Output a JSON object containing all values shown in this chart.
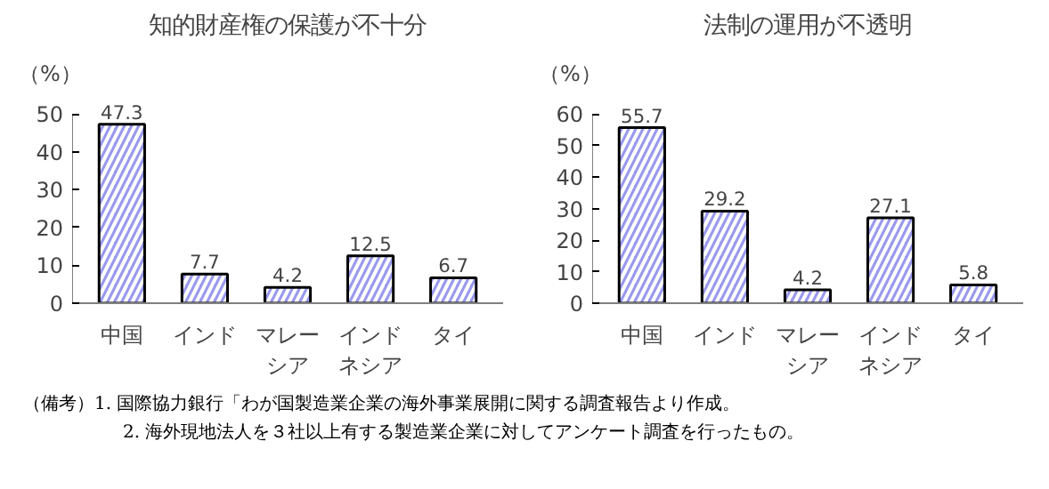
{
  "chart_data": [
    {
      "type": "bar",
      "title": "知的財産権の保護が不十分",
      "ylabel": "（%）",
      "categories": [
        "中国",
        "インド",
        "マレーシア",
        "インドネシア",
        "タイ"
      ],
      "values": [
        47.3,
        7.7,
        4.2,
        12.5,
        6.7
      ],
      "color": "#9999ee",
      "ylim": [
        0,
        50
      ],
      "yticks": [
        0,
        10,
        20,
        30,
        40,
        50
      ],
      "grid": false,
      "data_labels": true,
      "annotations": [
        "（備考）1. 国際協力銀行「わが国製造業企業の海外事業展開に関する調査報告より作成。",
        "2. 海外現地法人を３社以上有する製造業企業に対してアンケート調査を行ったもの。"
      ]
    },
    {
      "type": "bar",
      "title": "法制の運用が不透明",
      "ylabel": "（%）",
      "categories": [
        "中国",
        "インド",
        "マレーシア",
        "インドネシア",
        "タイ"
      ],
      "values": [
        55.7,
        29.2,
        4.2,
        27.1,
        5.8
      ],
      "color": "#9999ee",
      "ylim": [
        0,
        60
      ],
      "yticks": [
        0,
        10,
        20,
        30,
        40,
        50,
        60
      ],
      "grid": false,
      "data_labels": true
    }
  ]
}
